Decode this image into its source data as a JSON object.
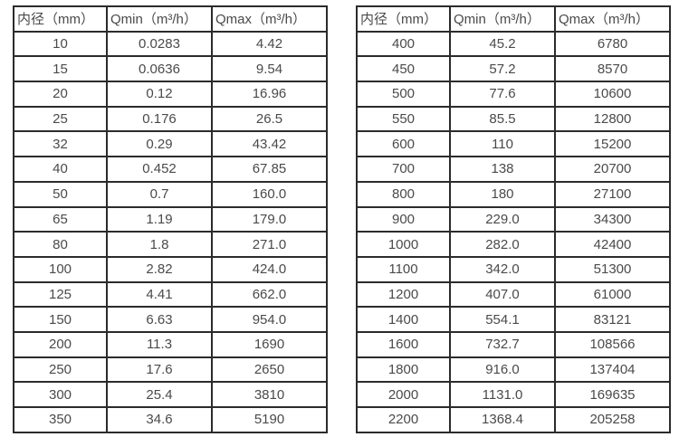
{
  "headers": {
    "diameter": "内径（mm）",
    "qmin": "Qmin（m³/h）",
    "qmax": "Qmax（m³/h）"
  },
  "left_table": {
    "rows": [
      [
        "10",
        "0.0283",
        "4.42"
      ],
      [
        "15",
        "0.0636",
        "9.54"
      ],
      [
        "20",
        "0.12",
        "16.96"
      ],
      [
        "25",
        "0.176",
        "26.5"
      ],
      [
        "32",
        "0.29",
        "43.42"
      ],
      [
        "40",
        "0.452",
        "67.85"
      ],
      [
        "50",
        "0.7",
        "160.0"
      ],
      [
        "65",
        "1.19",
        "179.0"
      ],
      [
        "80",
        "1.8",
        "271.0"
      ],
      [
        "100",
        "2.82",
        "424.0"
      ],
      [
        "125",
        "4.41",
        "662.0"
      ],
      [
        "150",
        "6.63",
        "954.0"
      ],
      [
        "200",
        "11.3",
        "1690"
      ],
      [
        "250",
        "17.6",
        "2650"
      ],
      [
        "300",
        "25.4",
        "3810"
      ],
      [
        "350",
        "34.6",
        "5190"
      ]
    ]
  },
  "right_table": {
    "rows": [
      [
        "400",
        "45.2",
        "6780"
      ],
      [
        "450",
        "57.2",
        "8570"
      ],
      [
        "500",
        "77.6",
        "10600"
      ],
      [
        "550",
        "85.5",
        "12800"
      ],
      [
        "600",
        "110",
        "15200"
      ],
      [
        "700",
        "138",
        "20700"
      ],
      [
        "800",
        "180",
        "27100"
      ],
      [
        "900",
        "229.0",
        "34300"
      ],
      [
        "1000",
        "282.0",
        "42400"
      ],
      [
        "1100",
        "342.0",
        "51300"
      ],
      [
        "1200",
        "407.0",
        "61000"
      ],
      [
        "1400",
        "554.1",
        "83121"
      ],
      [
        "1600",
        "732.7",
        "108566"
      ],
      [
        "1800",
        "916.0",
        "137404"
      ],
      [
        "2000",
        "1131.0",
        "169635"
      ],
      [
        "2200",
        "1368.4",
        "205258"
      ]
    ]
  },
  "colors": {
    "text": "#4a4a4a",
    "border": "#2b2b2b",
    "background": "#ffffff"
  }
}
